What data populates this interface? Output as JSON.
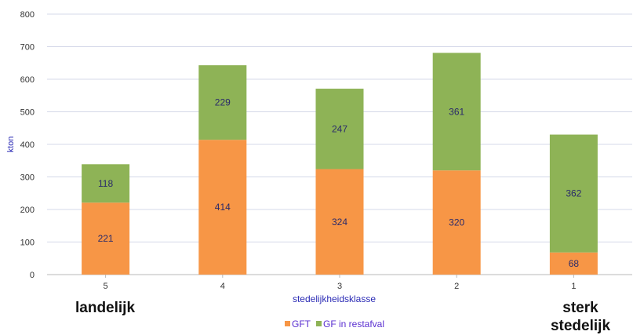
{
  "chart_data": {
    "type": "bar",
    "stacked": true,
    "categories": [
      "5",
      "4",
      "3",
      "2",
      "1"
    ],
    "series": [
      {
        "name": "GFT",
        "color": "#f79646",
        "values": [
          221,
          414,
          324,
          320,
          68
        ]
      },
      {
        "name": "GF in restafval",
        "color": "#8eb356",
        "values": [
          118,
          229,
          247,
          361,
          362
        ]
      }
    ],
    "title": "",
    "xlabel": "stedelijkheidsklasse",
    "ylabel": "kton",
    "ylim": [
      0,
      800
    ],
    "yticks": [
      0,
      100,
      200,
      300,
      400,
      500,
      600,
      700,
      800
    ],
    "grid": true,
    "legend_position": "bottom"
  },
  "annotations": {
    "left": "landelijk",
    "right_line1": "sterk",
    "right_line2": "stedelijk"
  }
}
